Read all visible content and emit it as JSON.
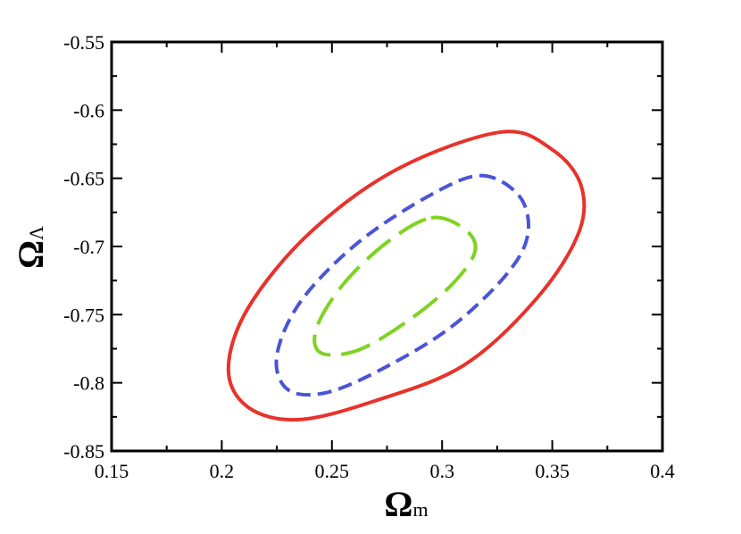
{
  "chart_data": {
    "type": "line",
    "title": "",
    "xlabel": {
      "symbol": "Ω",
      "subscript": "m"
    },
    "ylabel": {
      "symbol": "Ω",
      "subscript": "Λ"
    },
    "xlim": [
      0.15,
      0.4
    ],
    "ylim": [
      -0.85,
      -0.55
    ],
    "xticks": [
      0.15,
      0.2,
      0.25,
      0.3,
      0.35,
      0.4
    ],
    "xtick_labels": [
      "0.15",
      "0.2",
      "0.25",
      "0.3",
      "0.35",
      "0.4"
    ],
    "yticks": [
      -0.85,
      -0.8,
      -0.75,
      -0.7,
      -0.65,
      -0.6,
      -0.55
    ],
    "ytick_labels": [
      "-0.85",
      "-0.8",
      "-0.75",
      "-0.7",
      "-0.65",
      "-0.6",
      "-0.55"
    ],
    "grid": false,
    "legend": "none",
    "series": [
      {
        "color": "#e8322b",
        "style": "solid",
        "x": [
          0.327,
          0.35,
          0.363,
          0.362,
          0.343,
          0.31,
          0.27,
          0.235,
          0.212,
          0.203,
          0.212,
          0.24,
          0.28,
          0.327
        ],
        "y": [
          -0.616,
          -0.629,
          -0.655,
          -0.69,
          -0.738,
          -0.787,
          -0.813,
          -0.827,
          -0.818,
          -0.79,
          -0.745,
          -0.69,
          -0.643,
          -0.616
        ]
      },
      {
        "color": "#4a55d6",
        "style": "dashed",
        "x": [
          0.318,
          0.335,
          0.339,
          0.33,
          0.305,
          0.275,
          0.248,
          0.23,
          0.225,
          0.236,
          0.262,
          0.295,
          0.318
        ],
        "y": [
          -0.648,
          -0.663,
          -0.69,
          -0.719,
          -0.758,
          -0.788,
          -0.807,
          -0.805,
          -0.78,
          -0.74,
          -0.697,
          -0.662,
          -0.648
        ]
      },
      {
        "color": "#7ed321",
        "style": "longdash",
        "x": [
          0.295,
          0.31,
          0.315,
          0.305,
          0.285,
          0.262,
          0.245,
          0.243,
          0.255,
          0.275,
          0.295
        ],
        "y": [
          -0.679,
          -0.687,
          -0.703,
          -0.727,
          -0.754,
          -0.776,
          -0.778,
          -0.76,
          -0.728,
          -0.697,
          -0.679
        ]
      }
    ]
  }
}
